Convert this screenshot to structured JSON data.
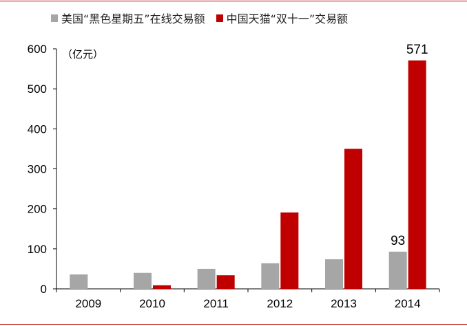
{
  "chart_data": {
    "type": "bar",
    "categories": [
      "2009",
      "2010",
      "2011",
      "2012",
      "2013",
      "2014"
    ],
    "series": [
      {
        "name": "美国“黑色星期五”在线交易额",
        "color": "#a6a6a6",
        "values": [
          36,
          40,
          50,
          64,
          74,
          93
        ]
      },
      {
        "name": "中国天猫“双十一”交易额",
        "color": "#c00000",
        "values": [
          0,
          9,
          34,
          191,
          350,
          571
        ]
      }
    ],
    "unit_label": "（亿元）",
    "ylim": [
      0,
      600
    ],
    "yticks": [
      0,
      100,
      200,
      300,
      400,
      500,
      600
    ],
    "data_labels": [
      {
        "series": 0,
        "index": 5,
        "text": "93"
      },
      {
        "series": 1,
        "index": 5,
        "text": "571"
      }
    ],
    "legend_position": "top",
    "grid": false
  }
}
